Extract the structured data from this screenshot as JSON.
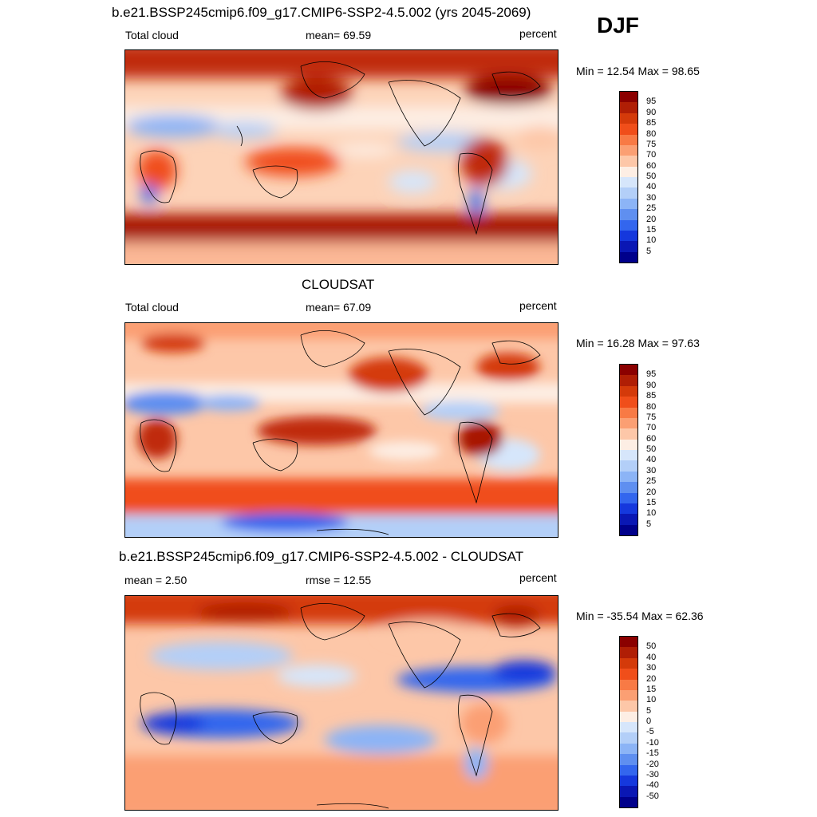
{
  "season": "DJF",
  "panels": [
    {
      "title": "b.e21.BSSP245cmip6.f09_g17.CMIP6-SSP2-4.5.002 (yrs 2045-2069)",
      "left_label": "Total cloud",
      "center_label": "mean=  69.59",
      "right_label": "percent",
      "minmax": "Min =  12.54 Max =  98.65",
      "cbar_labels": [
        "95",
        "90",
        "85",
        "80",
        "75",
        "70",
        "60",
        "50",
        "40",
        "30",
        "25",
        "20",
        "15",
        "10",
        "5"
      ],
      "cbar_colors": [
        "#8b0000",
        "#b01e05",
        "#d43a0a",
        "#f04e1a",
        "#f87a45",
        "#fb9f73",
        "#fdc7a8",
        "#fdeee4",
        "#d6e6fb",
        "#b3cff8",
        "#8cb4f6",
        "#5f8ff0",
        "#3366ee",
        "#1538dd",
        "#0a17b4",
        "#00008b"
      ]
    },
    {
      "title": "CLOUDSAT",
      "left_label": "Total cloud",
      "center_label": "mean=  67.09",
      "right_label": "percent",
      "minmax": "Min =  16.28 Max =  97.63",
      "cbar_labels": [
        "95",
        "90",
        "85",
        "80",
        "75",
        "70",
        "60",
        "50",
        "40",
        "30",
        "25",
        "20",
        "15",
        "10",
        "5"
      ],
      "cbar_colors": [
        "#8b0000",
        "#b01e05",
        "#d43a0a",
        "#f04e1a",
        "#f87a45",
        "#fb9f73",
        "#fdc7a8",
        "#fdeee4",
        "#d6e6fb",
        "#b3cff8",
        "#8cb4f6",
        "#5f8ff0",
        "#3366ee",
        "#1538dd",
        "#0a17b4",
        "#00008b"
      ]
    },
    {
      "title": "b.e21.BSSP245cmip6.f09_g17.CMIP6-SSP2-4.5.002 - CLOUDSAT",
      "left_label": "mean =   2.50",
      "center_label": "rmse =  12.55",
      "right_label": "percent",
      "minmax": "Min = -35.54 Max =  62.36",
      "cbar_labels": [
        "50",
        "40",
        "30",
        "20",
        "15",
        "10",
        "5",
        "0",
        "-5",
        "-10",
        "-15",
        "-20",
        "-30",
        "-40",
        "-50"
      ],
      "cbar_colors": [
        "#8b0000",
        "#b01e05",
        "#d43a0a",
        "#f04e1a",
        "#f87a45",
        "#fb9f73",
        "#fdc7a8",
        "#fdeee4",
        "#d6e6fb",
        "#b3cff8",
        "#8cb4f6",
        "#5f8ff0",
        "#3366ee",
        "#1538dd",
        "#0a17b4",
        "#00008b"
      ]
    }
  ]
}
